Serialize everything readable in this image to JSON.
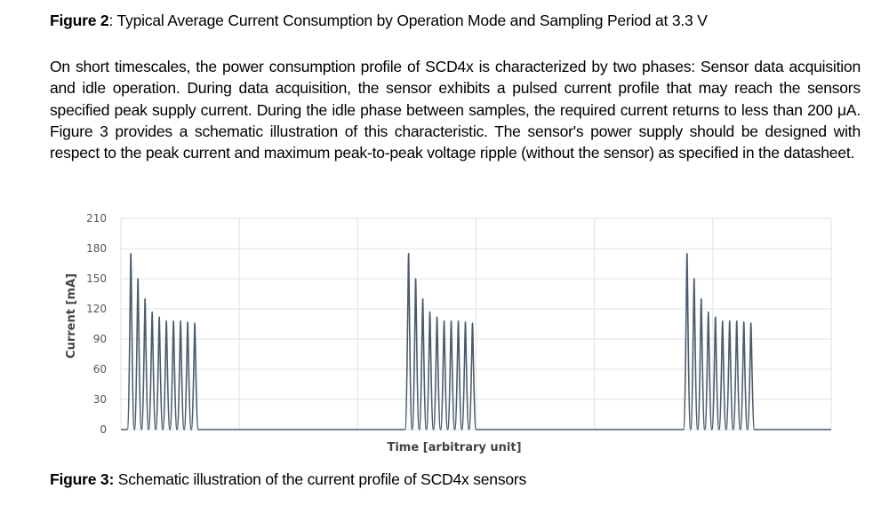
{
  "figure2": {
    "label": "Figure 2",
    "text": ": Typical Average Current Consumption by Operation Mode and Sampling Period at 3.3 V"
  },
  "paragraph": "On short timescales, the power consumption profile of SCD4x is characterized by two phases: Sensor data acquisition and idle operation. During data acquisition, the sensor exhibits a pulsed current profile that may reach the sensors specified peak supply current. During the idle phase between samples, the required current returns to less than 200 μA. Figure 3  provides a schematic illustration of this characteristic. The sensor's power supply should be designed with respect to the peak current and maximum peak-to-peak voltage ripple (without the sensor) as specified in the datasheet.",
  "figure3": {
    "label": "Figure 3:",
    "text": " Schematic illustration of the current profile of SCD4x sensors"
  },
  "chart_data": {
    "type": "line",
    "xlabel": "Time [arbitrary unit]",
    "ylabel": "Current [mA]",
    "ylim": [
      0,
      210
    ],
    "yticks": [
      0,
      30,
      60,
      90,
      120,
      150,
      180,
      210
    ],
    "xlim": [
      0,
      100
    ],
    "grid": true,
    "line_color": "#4a5b6c",
    "bursts": [
      {
        "start": 0.9,
        "pulse_spacing": 1.0,
        "peaks": [
          175,
          150,
          130,
          117,
          112,
          108,
          108,
          108,
          107,
          106
        ]
      },
      {
        "start": 40.0,
        "pulse_spacing": 1.0,
        "peaks": [
          175,
          150,
          130,
          117,
          112,
          108,
          108,
          108,
          107,
          106
        ]
      },
      {
        "start": 79.2,
        "pulse_spacing": 1.0,
        "peaks": [
          175,
          150,
          130,
          117,
          112,
          108,
          108,
          108,
          107,
          106
        ]
      }
    ]
  }
}
